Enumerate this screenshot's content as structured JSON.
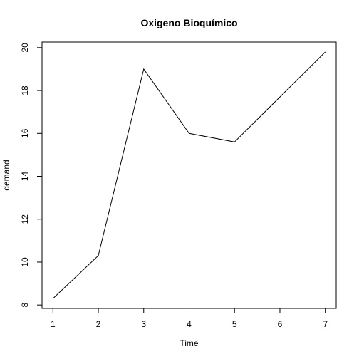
{
  "chart_data": {
    "type": "line",
    "title": "Oxigeno Bioquímico",
    "xlabel": "Time",
    "ylabel": "demand",
    "x": [
      1,
      2,
      3,
      4,
      5,
      6,
      7
    ],
    "series": [
      {
        "values": [
          8.3,
          10.3,
          19.0,
          16.0,
          15.6,
          17.7,
          19.8
        ]
      }
    ],
    "xticks": [
      1,
      2,
      3,
      4,
      5,
      6,
      7
    ],
    "yticks": [
      8,
      10,
      12,
      14,
      16,
      18,
      20
    ],
    "xlim": [
      0.76,
      7.24
    ],
    "ylim": [
      7.84,
      20.26
    ],
    "grid": false,
    "line_color": "#000000"
  }
}
